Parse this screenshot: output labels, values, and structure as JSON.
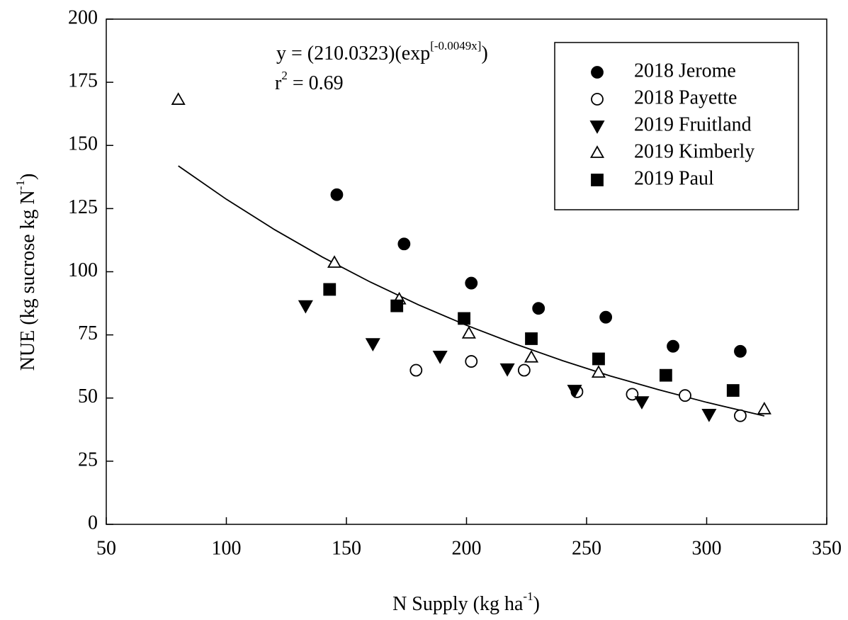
{
  "chart_data": {
    "type": "scatter",
    "xlabel": {
      "main": "N Supply (kg ha",
      "sup": "-1",
      "end": ")"
    },
    "ylabel": {
      "main": "NUE (kg sucrose kg N",
      "sup": "-1",
      "end": ")"
    },
    "annotations": {
      "equation": {
        "main": "y = (210.0323)(exp",
        "sup": "[-0.0049x]",
        "end": ")"
      },
      "r2": {
        "main": "r",
        "sup": "2",
        "end": " = 0.69"
      }
    },
    "xlim": [
      50,
      350
    ],
    "xticks": [
      50,
      100,
      150,
      200,
      250,
      300,
      350
    ],
    "ylim": [
      0,
      200
    ],
    "yticks": [
      0,
      25,
      50,
      75,
      100,
      125,
      150,
      175,
      200
    ],
    "legend": "upper right",
    "series": [
      {
        "name": "2018 Jerome",
        "marker": "circle",
        "filled": true,
        "color": "#000000",
        "x": [
          146,
          174,
          202,
          230,
          258,
          286,
          314
        ],
        "values": [
          130.5,
          111,
          95.5,
          85.5,
          82,
          70.5,
          68.5
        ]
      },
      {
        "name": "2018 Payette",
        "marker": "circle",
        "filled": false,
        "color": "#000000",
        "x": [
          179,
          202,
          224,
          246,
          269,
          291,
          314
        ],
        "values": [
          61,
          64.5,
          61,
          52.5,
          51.5,
          51,
          43
        ]
      },
      {
        "name": "2019 Fruitland",
        "marker": "triangle-down",
        "filled": true,
        "color": "#000000",
        "x": [
          133,
          161,
          189,
          217,
          245,
          273,
          301
        ],
        "values": [
          86.5,
          71.5,
          66.5,
          61.5,
          53,
          48.5,
          43.5
        ]
      },
      {
        "name": "2019 Kimberly",
        "marker": "triangle-up",
        "filled": false,
        "color": "#000000",
        "x": [
          80,
          145,
          172,
          201,
          227,
          255,
          324
        ],
        "values": [
          168,
          103.5,
          89,
          75.5,
          66,
          60,
          45.5
        ]
      },
      {
        "name": "2019 Paul",
        "marker": "square",
        "filled": true,
        "color": "#000000",
        "x": [
          143,
          171,
          199,
          227,
          255,
          283,
          311
        ],
        "values": [
          93,
          86.5,
          81.5,
          73.5,
          65.5,
          59,
          53
        ]
      }
    ],
    "fit": {
      "color": "#000000",
      "x": [
        80,
        100,
        120,
        140,
        160,
        180,
        200,
        220,
        240,
        260,
        280,
        300,
        324
      ],
      "values": [
        141.9,
        128.7,
        116.7,
        105.8,
        95.9,
        86.9,
        78.8,
        71.5,
        64.8,
        58.7,
        53.3,
        48.3,
        42.9
      ]
    }
  }
}
